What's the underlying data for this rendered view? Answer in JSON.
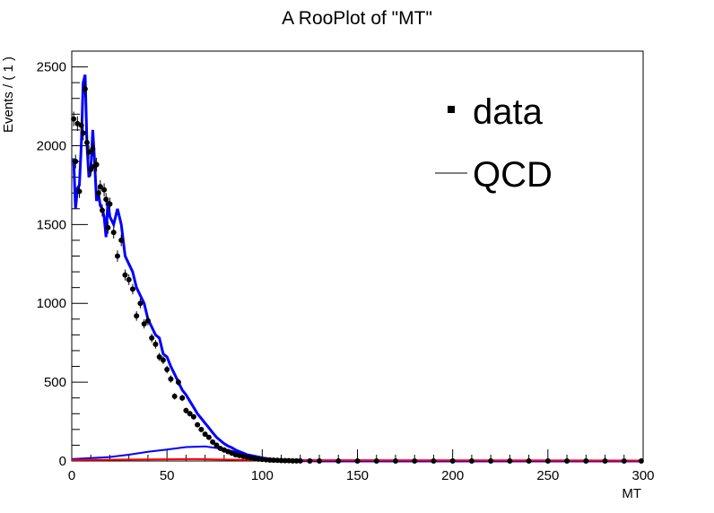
{
  "chart_data": {
    "type": "line",
    "title": "A RooPlot of \"MT\"",
    "xlabel": "MT",
    "ylabel": "Events / ( 1 )",
    "xlim": [
      0,
      300
    ],
    "ylim": [
      0,
      2600
    ],
    "x_ticks": [
      0,
      50,
      100,
      150,
      200,
      250,
      300
    ],
    "y_ticks": [
      0,
      500,
      1000,
      1500,
      2000,
      2500
    ],
    "legend": {
      "placement": "top-right",
      "entries": [
        {
          "label": "data",
          "marker": "point"
        },
        {
          "label": "QCD",
          "marker": "line"
        }
      ]
    },
    "series": [
      {
        "name": "data",
        "style": "points",
        "color": "#000000",
        "x": [
          1,
          2,
          3,
          4,
          5,
          6,
          7,
          8,
          9,
          10,
          11,
          12,
          13,
          14,
          15,
          16,
          17,
          18,
          19,
          20,
          22,
          24,
          26,
          28,
          30,
          32,
          34,
          36,
          38,
          40,
          42,
          44,
          46,
          48,
          50,
          52,
          54,
          56,
          58,
          60,
          62,
          64,
          66,
          68,
          70,
          72,
          74,
          76,
          78,
          80,
          82,
          84,
          86,
          88,
          90,
          92,
          94,
          96,
          98,
          100,
          102,
          104,
          106,
          108,
          110,
          112,
          114,
          116,
          118,
          120,
          125,
          130,
          140,
          150,
          160,
          170,
          180,
          190,
          200,
          210,
          220,
          230,
          240,
          250,
          260,
          270,
          280,
          290,
          299
        ],
        "y": [
          2170,
          1900,
          2140,
          1710,
          2130,
          2080,
          2360,
          2020,
          1960,
          1850,
          1980,
          1870,
          1880,
          1700,
          1740,
          1590,
          1720,
          1660,
          1480,
          1630,
          1450,
          1300,
          1400,
          1180,
          1150,
          1090,
          920,
          1000,
          870,
          890,
          780,
          740,
          660,
          640,
          580,
          520,
          410,
          500,
          400,
          320,
          300,
          280,
          230,
          200,
          170,
          150,
          120,
          100,
          80,
          70,
          60,
          50,
          40,
          35,
          30,
          25,
          20,
          15,
          12,
          10,
          8,
          6,
          5,
          4,
          3,
          2,
          2,
          1,
          1,
          1,
          0,
          0,
          0,
          0,
          0,
          0,
          0,
          0,
          0,
          0,
          0,
          0,
          0,
          0,
          0,
          0,
          0,
          0,
          0
        ]
      },
      {
        "name": "QCD",
        "style": "line",
        "color": "#0000ff",
        "x": [
          1,
          2,
          3,
          4,
          5,
          6,
          7,
          8,
          9,
          10,
          11,
          12,
          13,
          14,
          15,
          16,
          17,
          18,
          19,
          20,
          22,
          24,
          26,
          28,
          30,
          32,
          34,
          36,
          38,
          40,
          42,
          44,
          46,
          48,
          50,
          52,
          54,
          56,
          58,
          60,
          62,
          64,
          66,
          68,
          70,
          72,
          74,
          76,
          78,
          80,
          82,
          84,
          86,
          88,
          90,
          92,
          94,
          96,
          98,
          100,
          102,
          104,
          106,
          108,
          110,
          112,
          114,
          116,
          118,
          120,
          125,
          130,
          140,
          150,
          160,
          170,
          180,
          190,
          200,
          210,
          220,
          230,
          240,
          250,
          260,
          270,
          280,
          290,
          299
        ],
        "y": [
          1920,
          1600,
          1730,
          1750,
          2000,
          2400,
          2450,
          2000,
          1800,
          1840,
          2100,
          1900,
          1650,
          1700,
          1620,
          1600,
          1550,
          1420,
          1650,
          1550,
          1500,
          1600,
          1500,
          1300,
          1250,
          1200,
          1100,
          1050,
          1000,
          900,
          850,
          800,
          780,
          680,
          660,
          600,
          550,
          500,
          450,
          420,
          380,
          340,
          300,
          270,
          240,
          210,
          180,
          150,
          130,
          110,
          95,
          85,
          70,
          60,
          50,
          40,
          35,
          30,
          25,
          20,
          15,
          12,
          9,
          7,
          5,
          4,
          3,
          2,
          2,
          1,
          1,
          0,
          0,
          0,
          0,
          0,
          0,
          0,
          0,
          0,
          0,
          0,
          0,
          0,
          0,
          0,
          0,
          0,
          0
        ]
      },
      {
        "name": "",
        "style": "line",
        "color": "#0000ff",
        "x": [
          0,
          10,
          20,
          30,
          40,
          50,
          60,
          70,
          80,
          90,
          100,
          110,
          120,
          130,
          150,
          200,
          300
        ],
        "y": [
          12,
          18,
          25,
          40,
          58,
          72,
          88,
          92,
          75,
          45,
          20,
          8,
          3,
          1,
          0,
          0,
          0
        ]
      },
      {
        "name": "",
        "style": "line",
        "color": "#ff0000",
        "x": [
          0,
          20,
          40,
          65,
          100,
          300
        ],
        "y": [
          6,
          8,
          10,
          12,
          5,
          3
        ]
      }
    ]
  }
}
